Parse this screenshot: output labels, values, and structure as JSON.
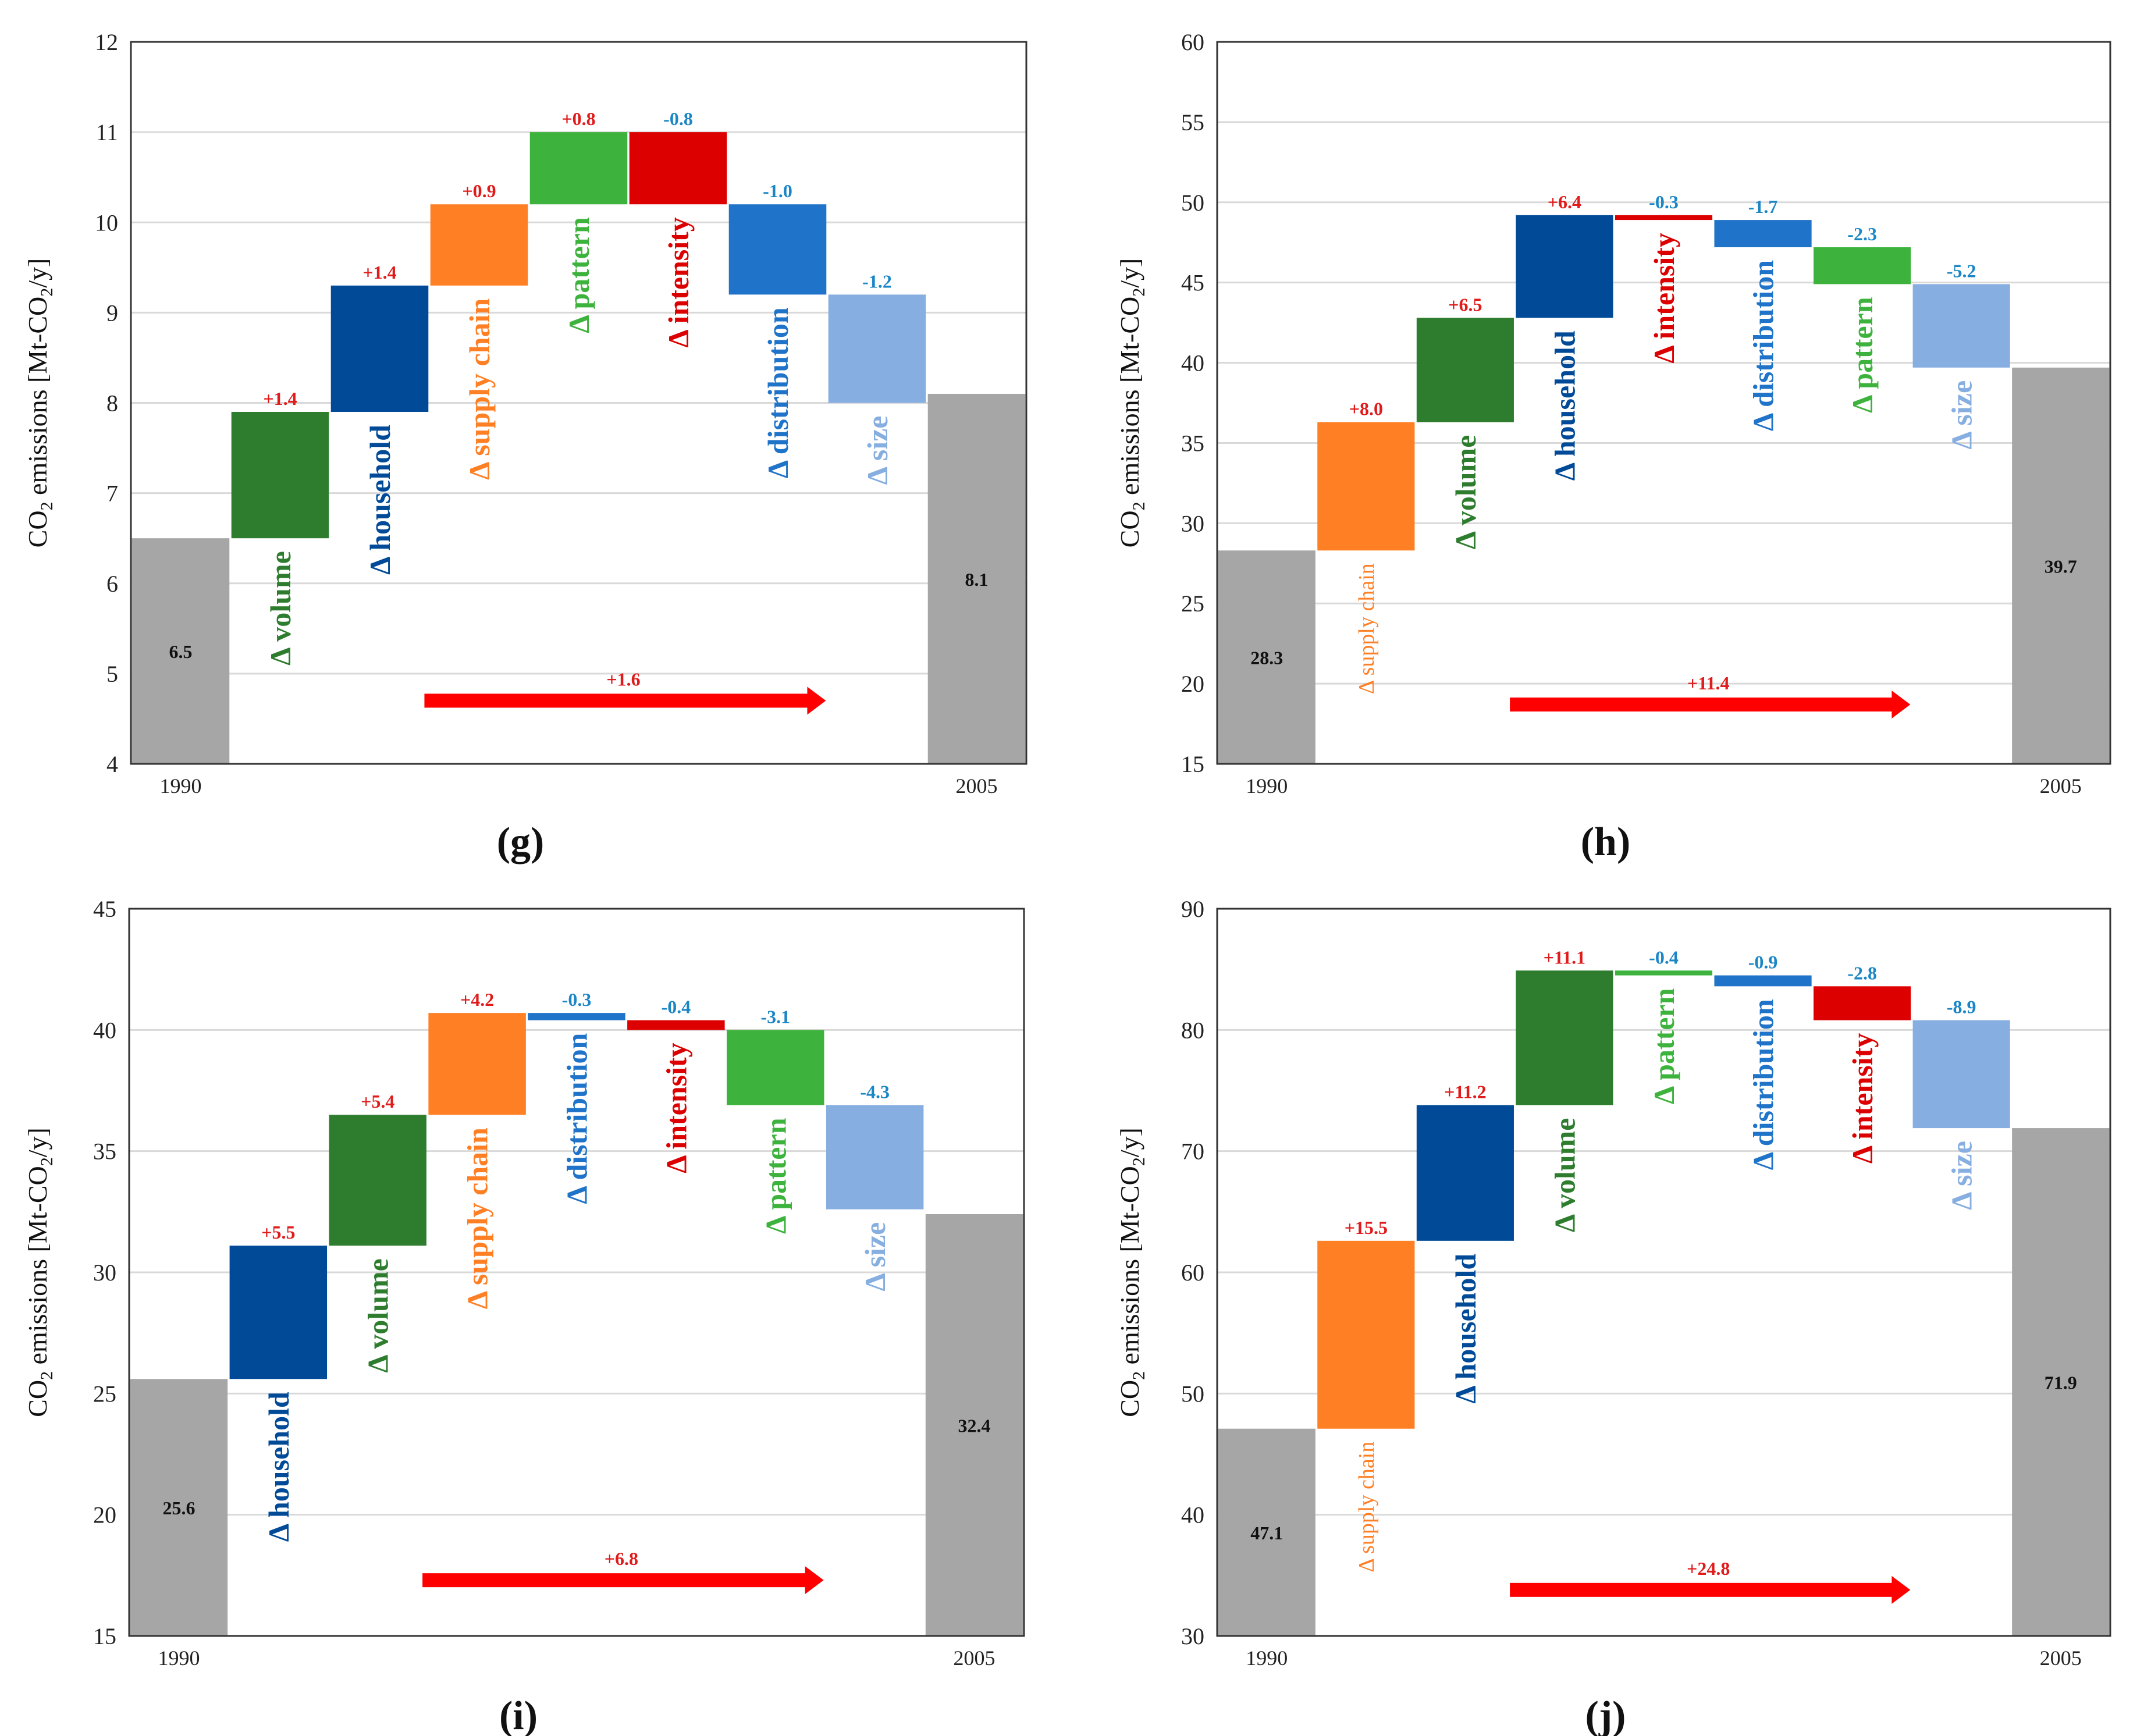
{
  "colors": {
    "total": "#a6a6a6",
    "volume": "#2e7d2e",
    "household": "#004a97",
    "supply_chain": "#ff7f24",
    "pattern": "#3db33d",
    "intensity": "#dd0000",
    "distribution": "#1f73c8",
    "size": "#86aee0",
    "positive_label": "#e01b1b",
    "negative_label": "#1a86c6",
    "arrow": "#ff0000"
  },
  "chart_data": [
    {
      "id": "g",
      "type": "bar",
      "subtype": "waterfall",
      "panel_label": "(g)",
      "ylabel_co": "CO",
      "ylabel_sub": "2",
      "ylabel_rest": " emissions [Mt-CO",
      "ylabel_sub2": "2",
      "ylabel_end": "/y]",
      "ylim": [
        4,
        12
      ],
      "yticks": [
        "4",
        "5",
        "6",
        "7",
        "8",
        "9",
        "10",
        "11",
        "12"
      ],
      "grid": true,
      "start": {
        "year": "1990",
        "value": 6.5,
        "label": "6.5"
      },
      "end": {
        "year": "2005",
        "value": 8.1,
        "label": "8.1"
      },
      "steps": [
        {
          "name": "Δ volume",
          "key": "volume",
          "delta": 1.4,
          "label": "+1.4"
        },
        {
          "name": "Δ household",
          "key": "household",
          "delta": 1.4,
          "label": "+1.4"
        },
        {
          "name": "Δ supply chain",
          "key": "supply_chain",
          "delta": 0.9,
          "label": "+0.9"
        },
        {
          "name": "Δ pattern",
          "key": "pattern",
          "delta": 0.8,
          "label": "+0.8"
        },
        {
          "name": "Δ intensity",
          "key": "intensity",
          "delta": -0.8,
          "label": "-0.8"
        },
        {
          "name": "Δ distribution",
          "key": "distribution",
          "delta": -1.0,
          "label": "-1.0"
        },
        {
          "name": "Δ size",
          "key": "size",
          "delta": -1.2,
          "label": "-1.2"
        }
      ],
      "net": {
        "label": "+1.6",
        "value": 1.6,
        "y": 4.7
      }
    },
    {
      "id": "h",
      "type": "bar",
      "subtype": "waterfall",
      "panel_label": "(h)",
      "ylabel_co": "CO",
      "ylabel_sub": "2",
      "ylabel_rest": " emissions [Mt-CO",
      "ylabel_sub2": "2",
      "ylabel_end": "/y]",
      "ylim": [
        15,
        60
      ],
      "yticks": [
        "15",
        "20",
        "25",
        "30",
        "35",
        "40",
        "45",
        "50",
        "55",
        "60"
      ],
      "grid": true,
      "start": {
        "year": "1990",
        "value": 28.3,
        "label": "28.3"
      },
      "end": {
        "year": "2005",
        "value": 39.7,
        "label": "39.7"
      },
      "steps": [
        {
          "name": "Δ supply chain",
          "key": "supply_chain",
          "delta": 8.0,
          "label": "+8.0",
          "small": true
        },
        {
          "name": "Δ volume",
          "key": "volume",
          "delta": 6.5,
          "label": "+6.5"
        },
        {
          "name": "Δ household",
          "key": "household",
          "delta": 6.4,
          "label": "+6.4"
        },
        {
          "name": "Δ intensity",
          "key": "intensity",
          "delta": -0.3,
          "label": "-0.3"
        },
        {
          "name": "Δ distribution",
          "key": "distribution",
          "delta": -1.7,
          "label": "-1.7"
        },
        {
          "name": "Δ pattern",
          "key": "pattern",
          "delta": -2.3,
          "label": "-2.3"
        },
        {
          "name": "Δ size",
          "key": "size",
          "delta": -5.2,
          "label": "-5.2"
        }
      ],
      "net": {
        "label": "+11.4",
        "value": 11.4,
        "y": 18.7
      }
    },
    {
      "id": "i",
      "type": "bar",
      "subtype": "waterfall",
      "panel_label": "(i)",
      "ylabel_co": "CO",
      "ylabel_sub": "2",
      "ylabel_rest": " emissions [Mt-CO",
      "ylabel_sub2": "2",
      "ylabel_end": "/y]",
      "ylim": [
        15,
        45
      ],
      "yticks": [
        "15",
        "20",
        "25",
        "30",
        "35",
        "40",
        "45"
      ],
      "grid": true,
      "start": {
        "year": "1990",
        "value": 25.6,
        "label": "25.6"
      },
      "end": {
        "year": "2005",
        "value": 32.4,
        "label": "32.4"
      },
      "steps": [
        {
          "name": "Δ household",
          "key": "household",
          "delta": 5.5,
          "label": "+5.5"
        },
        {
          "name": "Δ volume",
          "key": "volume",
          "delta": 5.4,
          "label": "+5.4"
        },
        {
          "name": "Δ supply chain",
          "key": "supply_chain",
          "delta": 4.2,
          "label": "+4.2"
        },
        {
          "name": "Δ distribution",
          "key": "distribution",
          "delta": -0.3,
          "label": "-0.3"
        },
        {
          "name": "Δ intensity",
          "key": "intensity",
          "delta": -0.4,
          "label": "-0.4"
        },
        {
          "name": "Δ pattern",
          "key": "pattern",
          "delta": -3.1,
          "label": "-3.1"
        },
        {
          "name": "Δ size",
          "key": "size",
          "delta": -4.3,
          "label": "-4.3"
        }
      ],
      "net": {
        "label": "+6.8",
        "value": 6.8,
        "y": 17.3
      }
    },
    {
      "id": "j",
      "type": "bar",
      "subtype": "waterfall",
      "panel_label": "(j)",
      "ylabel_co": "CO",
      "ylabel_sub": "2",
      "ylabel_rest": " emissions [Mt-CO",
      "ylabel_sub2": "2",
      "ylabel_end": "/y]",
      "ylim": [
        30,
        90
      ],
      "yticks": [
        "30",
        "40",
        "50",
        "60",
        "70",
        "80",
        "90"
      ],
      "grid": true,
      "start": {
        "year": "1990",
        "value": 47.1,
        "label": "47.1"
      },
      "end": {
        "year": "2005",
        "value": 71.9,
        "label": "71.9"
      },
      "steps": [
        {
          "name": "Δ supply chain",
          "key": "supply_chain",
          "delta": 15.5,
          "label": "+15.5",
          "small": true
        },
        {
          "name": "Δ household",
          "key": "household",
          "delta": 11.2,
          "label": "+11.2"
        },
        {
          "name": "Δ volume",
          "key": "volume",
          "delta": 11.1,
          "label": "+11.1"
        },
        {
          "name": "Δ pattern",
          "key": "pattern",
          "delta": -0.4,
          "label": "-0.4"
        },
        {
          "name": "Δ distribution",
          "key": "distribution",
          "delta": -0.9,
          "label": "-0.9"
        },
        {
          "name": "Δ intensity",
          "key": "intensity",
          "delta": -2.8,
          "label": "-2.8"
        },
        {
          "name": "Δ size",
          "key": "size",
          "delta": -8.9,
          "label": "-8.9"
        }
      ],
      "net": {
        "label": "+24.8",
        "value": 24.8,
        "y": 33.8
      }
    }
  ]
}
